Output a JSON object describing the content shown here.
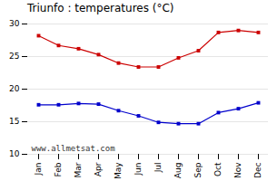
{
  "chart_data": {
    "type": "line",
    "title": "Triunfo : temperatures (°C)",
    "categories": [
      "Jan",
      "Feb",
      "Mar",
      "Apr",
      "May",
      "Jun",
      "Jul",
      "Aug",
      "Sep",
      "Oct",
      "Nov",
      "Dec"
    ],
    "series": [
      {
        "color": "#cc0000",
        "values": [
          28.2,
          26.7,
          26.2,
          25.3,
          24.0,
          23.4,
          23.4,
          24.8,
          25.9,
          28.7,
          29.0,
          28.7
        ]
      },
      {
        "color": "#0000cc",
        "values": [
          17.6,
          17.6,
          17.8,
          17.7,
          16.7,
          15.9,
          14.9,
          14.7,
          14.7,
          16.4,
          17.0,
          17.9
        ]
      }
    ],
    "ylim": [
      10,
      30
    ],
    "yticks": [
      10,
      15,
      20,
      25,
      30
    ],
    "grid": true,
    "marker": "square",
    "annotations": [
      "www.allmetsat.com"
    ]
  }
}
